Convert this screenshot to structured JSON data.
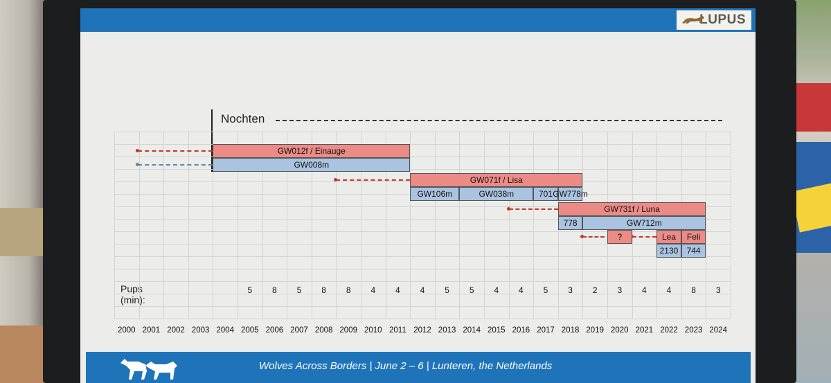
{
  "header": {
    "logo_text": "LUPUS"
  },
  "footer": {
    "text": "Wolves Across Borders | June 2 – 6 | Lunteren, the Netherlands"
  },
  "chart_data": {
    "type": "timeline",
    "title": "Nochten",
    "years": [
      "2000",
      "2001",
      "2002",
      "2003",
      "2004",
      "2005",
      "2006",
      "2007",
      "2008",
      "2009",
      "2010",
      "2011",
      "2012",
      "2013",
      "2014",
      "2015",
      "2016",
      "2017",
      "2018",
      "2019",
      "2020",
      "2021",
      "2022",
      "2023",
      "2024"
    ],
    "pups_label": "Pups (min):",
    "pups": [
      {
        "year": "2005",
        "value": "5"
      },
      {
        "year": "2006",
        "value": "8"
      },
      {
        "year": "2007",
        "value": "5"
      },
      {
        "year": "2008",
        "value": "8"
      },
      {
        "year": "2009",
        "value": "8"
      },
      {
        "year": "2010",
        "value": "4"
      },
      {
        "year": "2011",
        "value": "4"
      },
      {
        "year": "2012",
        "value": "4"
      },
      {
        "year": "2013",
        "value": "5"
      },
      {
        "year": "2014",
        "value": "5"
      },
      {
        "year": "2015",
        "value": "4"
      },
      {
        "year": "2016",
        "value": "4"
      },
      {
        "year": "2017",
        "value": "5"
      },
      {
        "year": "2018",
        "value": "3"
      },
      {
        "year": "2019",
        "value": "2"
      },
      {
        "year": "2020",
        "value": "3"
      },
      {
        "year": "2021",
        "value": "4"
      },
      {
        "year": "2022",
        "value": "4"
      },
      {
        "year": "2023",
        "value": "8"
      },
      {
        "year": "2024",
        "value": "3"
      }
    ],
    "bars": [
      {
        "label": "GW012f / Einauge",
        "sex": "female",
        "start": 2004,
        "end": 2012,
        "lane": 0
      },
      {
        "label": "GW008m",
        "sex": "male",
        "start": 2004,
        "end": 2012,
        "lane": 1
      },
      {
        "label": "GW071f / Lisa",
        "sex": "female",
        "start": 2012,
        "end": 2019,
        "lane": 2
      },
      {
        "label": "GW106m",
        "sex": "male",
        "start": 2012,
        "end": 2014,
        "lane": 3
      },
      {
        "label": "GW038m",
        "sex": "male",
        "start": 2014,
        "end": 2017,
        "lane": 3
      },
      {
        "label": "701",
        "sex": "male",
        "start": 2017,
        "end": 2018,
        "lane": 3
      },
      {
        "label": "GW778m",
        "sex": "male",
        "start": 2018,
        "end": 2019,
        "lane": 3
      },
      {
        "label": "GW731f / Luna",
        "sex": "female",
        "start": 2018,
        "end": 2024,
        "lane": 4
      },
      {
        "label": "778",
        "sex": "male",
        "start": 2018,
        "end": 2019,
        "lane": 5
      },
      {
        "label": "GW712m",
        "sex": "male",
        "start": 2019,
        "end": 2024,
        "lane": 5
      },
      {
        "label": "?",
        "sex": "female",
        "start": 2020,
        "end": 2021,
        "lane": 6
      },
      {
        "label": "Lea",
        "sex": "female",
        "start": 2022,
        "end": 2023,
        "lane": 6
      },
      {
        "label": "Feli",
        "sex": "female",
        "start": 2023,
        "end": 2024,
        "lane": 6
      },
      {
        "label": "2130",
        "sex": "male",
        "start": 2022,
        "end": 2023,
        "lane": 7
      },
      {
        "label": "744",
        "sex": "male",
        "start": 2023,
        "end": 2024,
        "lane": 7
      }
    ],
    "colors": {
      "female": "#ec8a86",
      "male": "#a9c3e0",
      "female_dash": "#c0392b",
      "male_dash": "#5d86a8"
    }
  }
}
